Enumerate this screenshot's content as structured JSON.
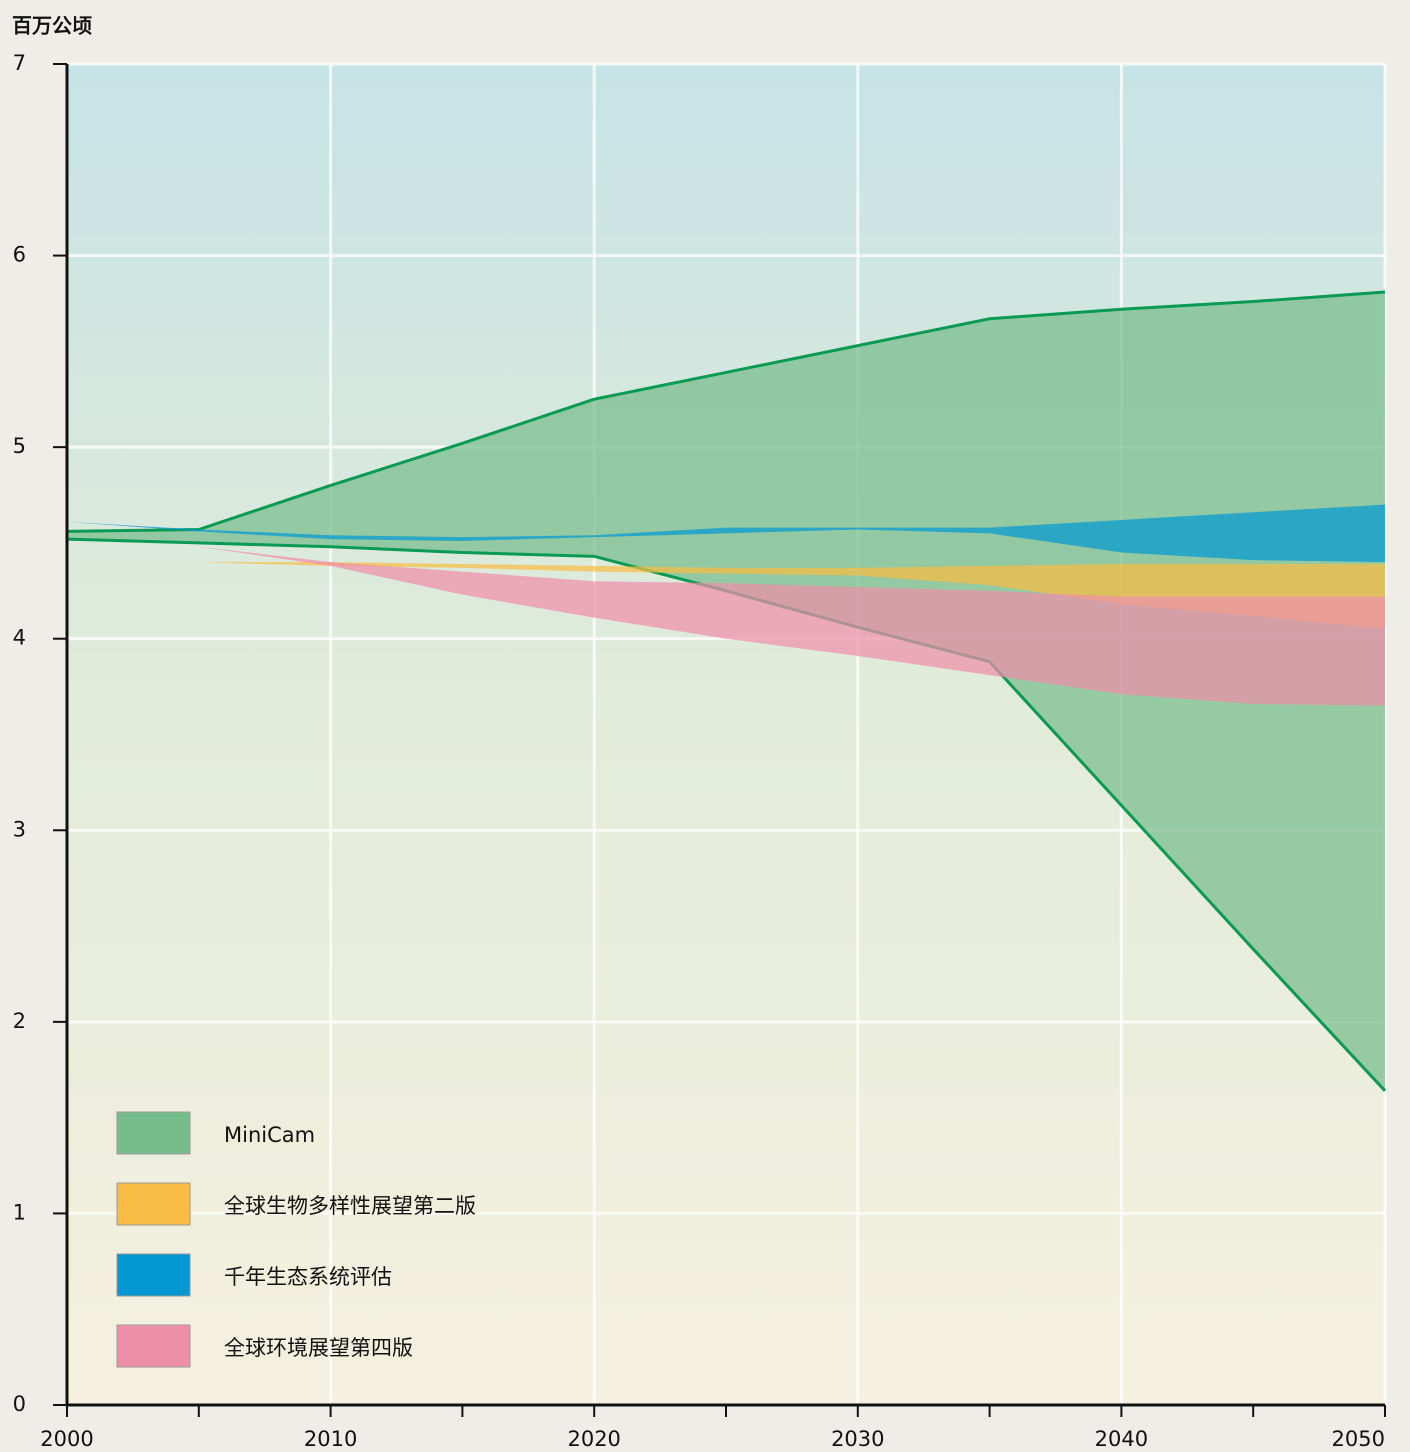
{
  "chart_data": {
    "type": "range-area",
    "y_label": "百万公顷",
    "x": [
      2000,
      2005,
      2010,
      2015,
      2020,
      2025,
      2030,
      2035,
      2040,
      2045,
      2050
    ],
    "xlim": [
      2000,
      2050
    ],
    "xticks": [
      2000,
      2010,
      2020,
      2030,
      2040,
      2050
    ],
    "ylim": [
      0,
      7
    ],
    "yticks": [
      0,
      1,
      2,
      3,
      4,
      5,
      6,
      7
    ],
    "grid": true,
    "legend": "lower-left",
    "series": [
      {
        "name": "MiniCam",
        "color": "#77bd8c",
        "outline": "#0a9a54",
        "upper": [
          4.56,
          4.57,
          4.8,
          5.02,
          5.25,
          5.39,
          5.53,
          5.67,
          5.72,
          5.76,
          5.81
        ],
        "lower": [
          4.52,
          4.5,
          4.48,
          4.45,
          4.43,
          4.25,
          4.06,
          3.88,
          3.13,
          2.38,
          1.64
        ]
      },
      {
        "name": "全球生物多样性展望第二版",
        "color": "#f9bc44",
        "upper": [
          null,
          4.4,
          4.4,
          4.39,
          4.38,
          4.37,
          4.37,
          4.38,
          4.39,
          4.39,
          4.39
        ],
        "lower": [
          null,
          4.4,
          4.38,
          4.37,
          4.35,
          4.34,
          4.33,
          4.28,
          4.18,
          4.12,
          4.05
        ]
      },
      {
        "name": "千年生态系统评估",
        "color": "#0398d3",
        "upper": [
          4.61,
          4.57,
          4.54,
          4.53,
          4.54,
          4.58,
          4.58,
          4.58,
          4.62,
          4.66,
          4.7
        ],
        "lower": [
          4.61,
          4.56,
          4.52,
          4.51,
          4.53,
          4.55,
          4.57,
          4.55,
          4.45,
          4.41,
          4.4
        ]
      },
      {
        "name": "全球环境展望第四版",
        "color": "#ee8faa",
        "upper": [
          4.56,
          4.48,
          4.4,
          4.35,
          4.3,
          4.29,
          4.27,
          4.25,
          4.22,
          4.22,
          4.22
        ],
        "lower": [
          4.56,
          4.48,
          4.38,
          4.23,
          4.11,
          4.0,
          3.91,
          3.81,
          3.71,
          3.66,
          3.65
        ]
      }
    ]
  }
}
